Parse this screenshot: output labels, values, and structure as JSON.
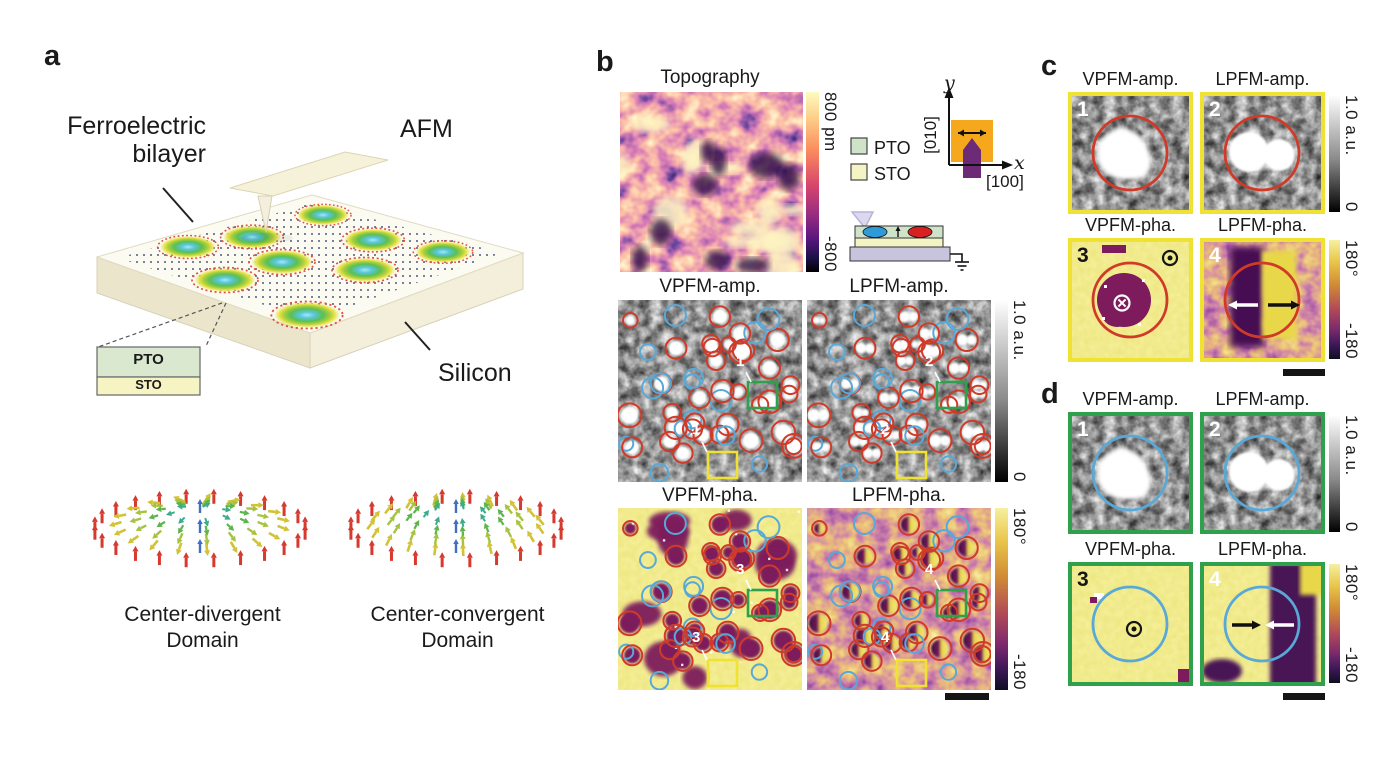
{
  "figure": {
    "panel_letters": {
      "a": "a",
      "b": "b",
      "c": "c",
      "d": "d"
    }
  },
  "panel_a": {
    "bilayer_line1": "Ferroelectric",
    "bilayer_line2": "bilayer",
    "afm_label": "AFM",
    "silicon_label": "Silicon",
    "inset": {
      "top_layer": "PTO",
      "bottom_layer": "STO"
    },
    "left_domain": {
      "line1": "Center-divergent",
      "line2": "Domain"
    },
    "right_domain": {
      "line1": "Center-convergent",
      "line2": "Domain"
    }
  },
  "panel_b": {
    "topography_title": "Topography",
    "legend": {
      "pto": "PTO",
      "sto": "STO"
    },
    "axes": {
      "y": "y",
      "y_miller": "[010]",
      "x": "x",
      "x_miller": "[100]"
    }
  },
  "map_titles": {
    "vamp": "VPFM-amp.",
    "lamp": "LPFM-amp.",
    "vpha": "VPFM-pha.",
    "lpha": "LPFM-pha."
  },
  "colorbars": {
    "topo_top": "800 pm",
    "topo_bottom": "-800",
    "amp_top": "1.0 a.u.",
    "amp_bottom": "0",
    "pha_top": "180°",
    "pha_bottom": "-180"
  },
  "markers": {
    "m1": "1",
    "m2": "2",
    "m3": "3",
    "m4": "4"
  },
  "colors": {
    "red_circle": "#d03a28",
    "blue_circle": "#58a8d8",
    "yellow_box": "#f0e232",
    "green_box": "#2fa04c",
    "pto_fill": "#cfe3c8",
    "sto_fill": "#f4f3c4",
    "silicon_fill": "#f6f2de",
    "orange_square": "#f5a81c",
    "purple_arrow": "#6d2a77",
    "purple_domain": "#7d1b5c",
    "phase_yellow": "#e8d84a",
    "scale_bar": "#151515"
  }
}
